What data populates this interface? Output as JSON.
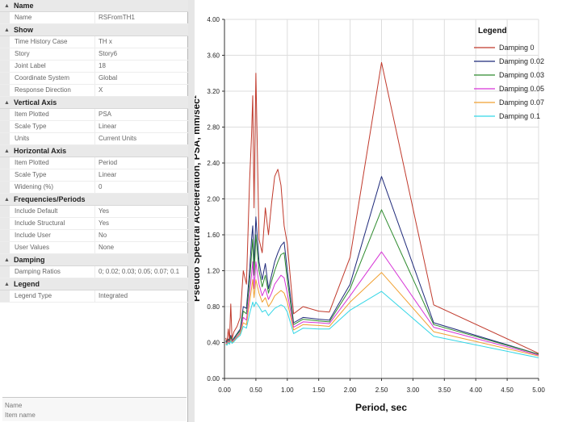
{
  "properties": {
    "groups": [
      {
        "title": "Name",
        "toggle": "▲",
        "rows": [
          {
            "key": "Name",
            "value": "RSFromTH1"
          }
        ]
      },
      {
        "title": "Show",
        "toggle": "▲",
        "rows": [
          {
            "key": "Time History Case",
            "value": "TH x"
          },
          {
            "key": "Story",
            "value": "Story6"
          },
          {
            "key": "Joint Label",
            "value": "18"
          },
          {
            "key": "Coordinate System",
            "value": "Global"
          },
          {
            "key": "Response Direction",
            "value": "X"
          }
        ]
      },
      {
        "title": "Vertical Axis",
        "toggle": "▲",
        "rows": [
          {
            "key": "Item Plotted",
            "value": "PSA"
          },
          {
            "key": "Scale Type",
            "value": "Linear"
          },
          {
            "key": "Units",
            "value": "Current Units"
          }
        ]
      },
      {
        "title": "Horizontal Axis",
        "toggle": "▲",
        "rows": [
          {
            "key": "Item Plotted",
            "value": "Period"
          },
          {
            "key": "Scale Type",
            "value": "Linear"
          },
          {
            "key": "Widening (%)",
            "value": "0"
          }
        ]
      },
      {
        "title": "Frequencies/Periods",
        "toggle": "▲",
        "rows": [
          {
            "key": "Include Default",
            "value": "Yes"
          },
          {
            "key": "Include Structural",
            "value": "Yes"
          },
          {
            "key": "Include User",
            "value": "No"
          },
          {
            "key": "User Values",
            "value": "None"
          }
        ]
      },
      {
        "title": "Damping",
        "toggle": "▲",
        "rows": [
          {
            "key": "Damping Ratios",
            "value": "0; 0.02; 0.03; 0.05; 0.07; 0.1"
          }
        ]
      },
      {
        "title": "Legend",
        "toggle": "▲",
        "rows": [
          {
            "key": "Legend Type",
            "value": "Integrated"
          }
        ]
      }
    ]
  },
  "description": {
    "title": "Name",
    "text": "Item name"
  },
  "colors": {
    "axis": "#333333",
    "grid": "#dddddd"
  },
  "chart_data": {
    "type": "line",
    "xlabel": "Period, sec",
    "ylabel": "Pseudo Spectral Acceleration, PSA, mm/sec²",
    "xlim": [
      0,
      5
    ],
    "ylim": [
      0,
      4
    ],
    "xticks": [
      "0.00",
      "0.50",
      "1.00",
      "1.50",
      "2.00",
      "2.50",
      "3.00",
      "3.50",
      "4.00",
      "4.50",
      "5.00"
    ],
    "yticks": [
      "0.00",
      "0.40",
      "0.80",
      "1.20",
      "1.60",
      "2.00",
      "2.40",
      "2.80",
      "3.20",
      "3.60",
      "4.00"
    ],
    "legend_title": "Legend",
    "legend_position": "top-right",
    "x": [
      0.02,
      0.04,
      0.06,
      0.08,
      0.1,
      0.12,
      0.15,
      0.2,
      0.25,
      0.3,
      0.35,
      0.4,
      0.43,
      0.45,
      0.47,
      0.5,
      0.55,
      0.6,
      0.65,
      0.7,
      0.75,
      0.8,
      0.85,
      0.9,
      0.95,
      1.0,
      1.1,
      1.25,
      1.5,
      1.67,
      2.0,
      2.5,
      3.33,
      5.0
    ],
    "series": [
      {
        "name": "Damping 0",
        "color": "#c0392b",
        "values": [
          0.45,
          0.4,
          0.55,
          0.42,
          0.83,
          0.44,
          0.52,
          0.58,
          0.68,
          1.2,
          1.05,
          2.2,
          2.7,
          3.15,
          1.9,
          3.4,
          1.55,
          1.4,
          1.9,
          1.6,
          1.95,
          2.25,
          2.33,
          2.15,
          1.7,
          1.5,
          0.72,
          0.8,
          0.75,
          0.74,
          1.35,
          3.52,
          0.82,
          0.28
        ]
      },
      {
        "name": "Damping 0.02",
        "color": "#1f2a7a",
        "values": [
          0.42,
          0.4,
          0.44,
          0.41,
          0.48,
          0.42,
          0.45,
          0.5,
          0.55,
          0.8,
          0.78,
          1.2,
          1.55,
          1.7,
          1.25,
          1.8,
          1.3,
          1.1,
          1.28,
          1.0,
          1.15,
          1.3,
          1.4,
          1.48,
          1.52,
          1.2,
          0.62,
          0.68,
          0.66,
          0.65,
          1.05,
          2.25,
          0.62,
          0.27
        ]
      },
      {
        "name": "Damping 0.03",
        "color": "#2e8b2e",
        "values": [
          0.41,
          0.4,
          0.43,
          0.41,
          0.46,
          0.42,
          0.44,
          0.49,
          0.53,
          0.75,
          0.72,
          1.08,
          1.38,
          1.55,
          1.15,
          1.6,
          1.2,
          1.02,
          1.15,
          0.95,
          1.08,
          1.2,
          1.3,
          1.38,
          1.4,
          1.1,
          0.6,
          0.66,
          0.64,
          0.63,
          1.0,
          1.88,
          0.6,
          0.27
        ]
      },
      {
        "name": "Damping 0.05",
        "color": "#d633d6",
        "values": [
          0.4,
          0.39,
          0.42,
          0.4,
          0.44,
          0.41,
          0.43,
          0.47,
          0.51,
          0.68,
          0.65,
          0.95,
          1.15,
          1.3,
          1.0,
          1.3,
          1.05,
          0.92,
          1.0,
          0.88,
          0.95,
          1.05,
          1.1,
          1.15,
          1.12,
          0.95,
          0.57,
          0.63,
          0.62,
          0.61,
          0.92,
          1.41,
          0.57,
          0.26
        ]
      },
      {
        "name": "Damping 0.07",
        "color": "#f0a030",
        "values": [
          0.39,
          0.38,
          0.41,
          0.39,
          0.43,
          0.4,
          0.42,
          0.46,
          0.5,
          0.62,
          0.6,
          0.85,
          1.0,
          1.1,
          0.9,
          1.1,
          0.95,
          0.85,
          0.9,
          0.8,
          0.85,
          0.92,
          0.95,
          0.98,
          0.95,
          0.85,
          0.54,
          0.6,
          0.59,
          0.58,
          0.85,
          1.18,
          0.52,
          0.25
        ]
      },
      {
        "name": "Damping 0.1",
        "color": "#33d6e6",
        "values": [
          0.38,
          0.37,
          0.4,
          0.38,
          0.42,
          0.39,
          0.41,
          0.45,
          0.48,
          0.58,
          0.56,
          0.72,
          0.8,
          0.85,
          0.8,
          0.85,
          0.8,
          0.74,
          0.76,
          0.7,
          0.74,
          0.78,
          0.8,
          0.82,
          0.8,
          0.74,
          0.5,
          0.56,
          0.55,
          0.55,
          0.76,
          0.97,
          0.47,
          0.23
        ]
      }
    ]
  }
}
